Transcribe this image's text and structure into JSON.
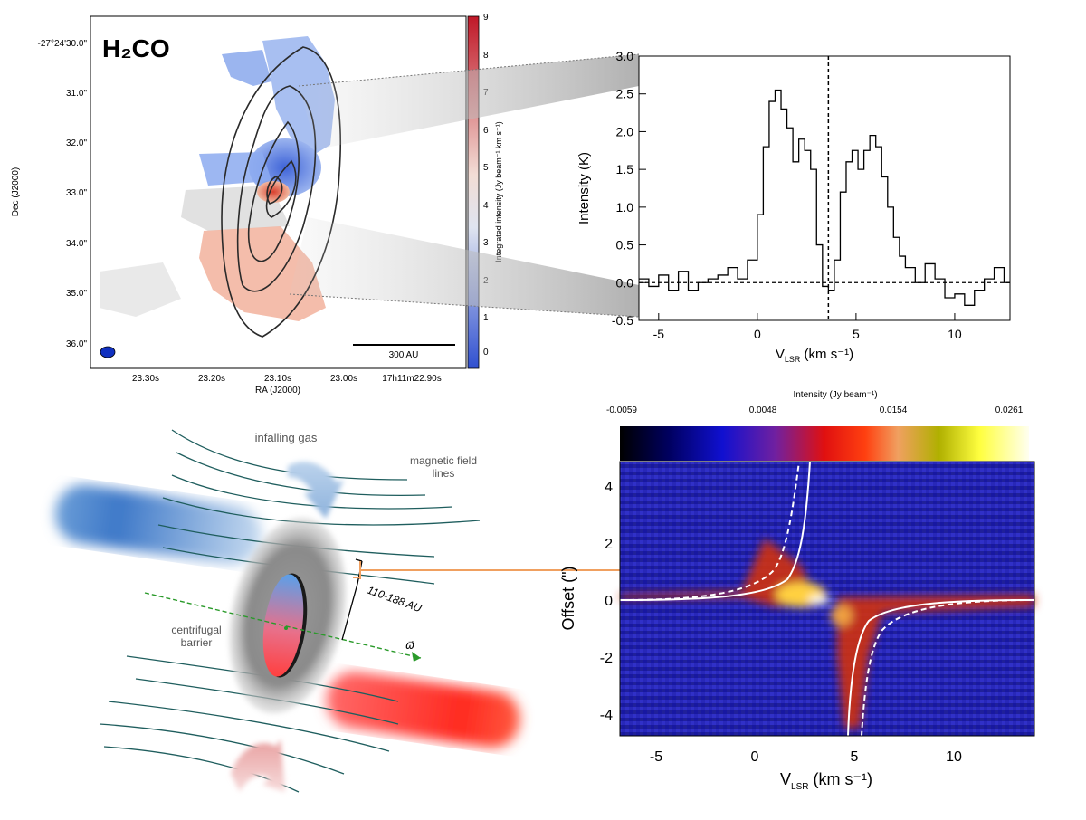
{
  "figure": {
    "colors": {
      "blue": "#4a7de0",
      "red": "#e8402e",
      "contour": "#2a2a2a",
      "field_line": "#1f5e5e",
      "orange": "#f0a060",
      "spectrum": "#000000"
    }
  },
  "panel_a": {
    "molecule": "H₂CO",
    "y_axis_label": "Dec (J2000)",
    "x_axis_label": "RA (J2000)",
    "y_ticks": [
      "-27°24'30.0\"",
      "31.0\"",
      "32.0\"",
      "33.0\"",
      "34.0\"",
      "35.0\"",
      "36.0\""
    ],
    "x_ticks": [
      "23.30s",
      "23.20s",
      "23.10s",
      "23.00s",
      "17h11m22.90s"
    ],
    "scale_bar_label": "300 AU",
    "colorbar_label": "Integrated intensity (Jy beam⁻¹ km s⁻¹)",
    "colorbar_ticks": [
      "9",
      "8",
      "7",
      "6",
      "5",
      "4",
      "3",
      "2",
      "1",
      "0"
    ]
  },
  "panel_b": {
    "ylabel": "Intensity (K)",
    "xlabel": "V",
    "xlabel_sub": "LSR",
    "xlabel_units": " (km s⁻¹)",
    "chart_data": {
      "type": "line",
      "title": "",
      "xlim": [
        -6,
        12.8
      ],
      "ylim": [
        -0.5,
        3.0
      ],
      "x_ticks": [
        -5,
        0,
        5,
        10
      ],
      "y_ticks": [
        "-0.5",
        "0.0",
        "0.5",
        "1.0",
        "1.5",
        "2.0",
        "2.5",
        "3.0"
      ],
      "systemic_velocity": 3.6,
      "series": [
        {
          "name": "H2CO spectrum",
          "x": [
            -6.0,
            -5.5,
            -5.0,
            -4.5,
            -4.0,
            -3.5,
            -3.0,
            -2.5,
            -2.0,
            -1.5,
            -1.0,
            -0.5,
            0.0,
            0.3,
            0.6,
            0.9,
            1.2,
            1.5,
            1.8,
            2.1,
            2.4,
            2.7,
            3.0,
            3.3,
            3.6,
            3.9,
            4.2,
            4.5,
            4.8,
            5.1,
            5.4,
            5.7,
            6.0,
            6.3,
            6.6,
            6.9,
            7.2,
            7.5,
            8.0,
            8.5,
            9.0,
            9.5,
            10.0,
            10.5,
            11.0,
            11.5,
            12.0,
            12.5
          ],
          "values": [
            0.05,
            -0.05,
            0.1,
            -0.1,
            0.15,
            -0.1,
            0.0,
            0.05,
            0.1,
            0.2,
            0.05,
            0.3,
            0.9,
            1.8,
            2.4,
            2.55,
            2.3,
            2.05,
            1.6,
            1.9,
            1.75,
            1.5,
            0.5,
            -0.05,
            -0.1,
            0.3,
            1.2,
            1.6,
            1.75,
            1.5,
            1.75,
            1.95,
            1.8,
            1.4,
            1.0,
            0.6,
            0.35,
            0.2,
            0.0,
            0.25,
            0.05,
            -0.2,
            -0.15,
            -0.3,
            -0.1,
            0.05,
            0.2,
            0.0
          ]
        }
      ]
    }
  },
  "panel_c": {
    "labels": {
      "infalling_gas": "infalling gas",
      "magnetic_field_lines": "magnetic field\nlines",
      "field_line1": "magnetic field",
      "field_line2": "lines",
      "barrier1": "centrifugal",
      "barrier2": "barrier",
      "radius": "110-188 AU",
      "omega": "ω⃗"
    }
  },
  "panel_d": {
    "colorbar_title": "Intensity (Jy beam⁻¹)",
    "colorbar_ticks": [
      "-0.0059",
      "0.0048",
      "0.0154",
      "0.0261"
    ],
    "ylabel": "Offset (\")",
    "xlabel": "V",
    "xlabel_sub": "LSR",
    "xlabel_units": " (km s⁻¹)",
    "x_ticks": [
      "-5",
      "0",
      "5",
      "10"
    ],
    "y_ticks": [
      "4",
      "2",
      "0",
      "-2",
      "-4"
    ]
  }
}
